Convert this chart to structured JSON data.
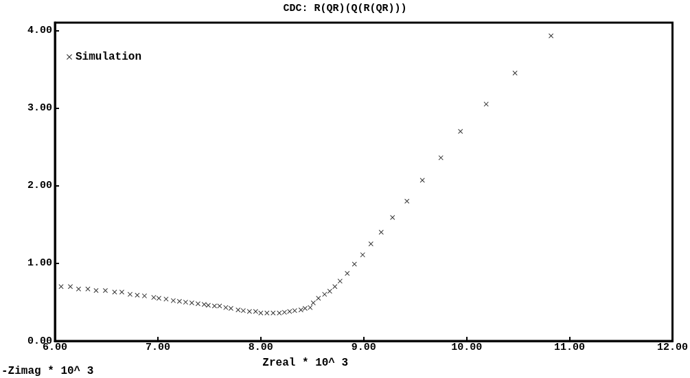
{
  "chart_data": {
    "type": "scatter",
    "title": "CDC: R(QR)(Q(R(QR)))",
    "xlabel": "Zreal * 10^ 3",
    "ylabel": "-Zimag * 10^ 3",
    "xlim": [
      6,
      12
    ],
    "xticks": [
      {
        "value": 6,
        "label": "6.00"
      },
      {
        "value": 7,
        "label": "7.00"
      },
      {
        "value": 8,
        "label": "8.00"
      },
      {
        "value": 9,
        "label": "9.00"
      },
      {
        "value": 10,
        "label": "10.00"
      },
      {
        "value": 11,
        "label": "11.00"
      },
      {
        "value": 12,
        "label": "12.00"
      }
    ],
    "ylim": [
      0,
      4.1
    ],
    "yticks": [
      {
        "value": 0,
        "label": "0.00"
      },
      {
        "value": 1,
        "label": "1.00"
      },
      {
        "value": 2,
        "label": "2.00"
      },
      {
        "value": 3,
        "label": "3.00"
      },
      {
        "value": 4,
        "label": "4.00"
      }
    ],
    "grid": false,
    "legend": "top left",
    "marker": "cross",
    "series": [
      {
        "name": "Simulation",
        "color": "#000000",
        "x": [
          6.06,
          6.15,
          6.23,
          6.32,
          6.4,
          6.49,
          6.58,
          6.65,
          6.73,
          6.8,
          6.87,
          6.96,
          7.01,
          7.08,
          7.15,
          7.21,
          7.27,
          7.33,
          7.39,
          7.45,
          7.49,
          7.55,
          7.6,
          7.66,
          7.71,
          7.78,
          7.83,
          7.89,
          7.95,
          8.0,
          8.06,
          8.12,
          8.18,
          8.23,
          8.28,
          8.33,
          8.39,
          8.43,
          8.48,
          8.51,
          8.56,
          8.62,
          8.67,
          8.72,
          8.77,
          8.84,
          8.91,
          8.99,
          9.07,
          9.17,
          9.28,
          9.42,
          9.57,
          9.75,
          9.94,
          10.19,
          10.47,
          10.82
        ],
        "values": [
          0.7,
          0.7,
          0.67,
          0.67,
          0.65,
          0.65,
          0.63,
          0.63,
          0.6,
          0.59,
          0.58,
          0.56,
          0.55,
          0.54,
          0.52,
          0.51,
          0.5,
          0.49,
          0.48,
          0.47,
          0.46,
          0.45,
          0.45,
          0.43,
          0.42,
          0.4,
          0.39,
          0.38,
          0.38,
          0.36,
          0.36,
          0.36,
          0.36,
          0.37,
          0.38,
          0.39,
          0.4,
          0.42,
          0.43,
          0.49,
          0.55,
          0.6,
          0.64,
          0.7,
          0.77,
          0.87,
          0.99,
          1.11,
          1.25,
          1.4,
          1.59,
          1.8,
          2.07,
          2.36,
          2.7,
          3.05,
          3.45,
          3.93
        ]
      }
    ]
  }
}
